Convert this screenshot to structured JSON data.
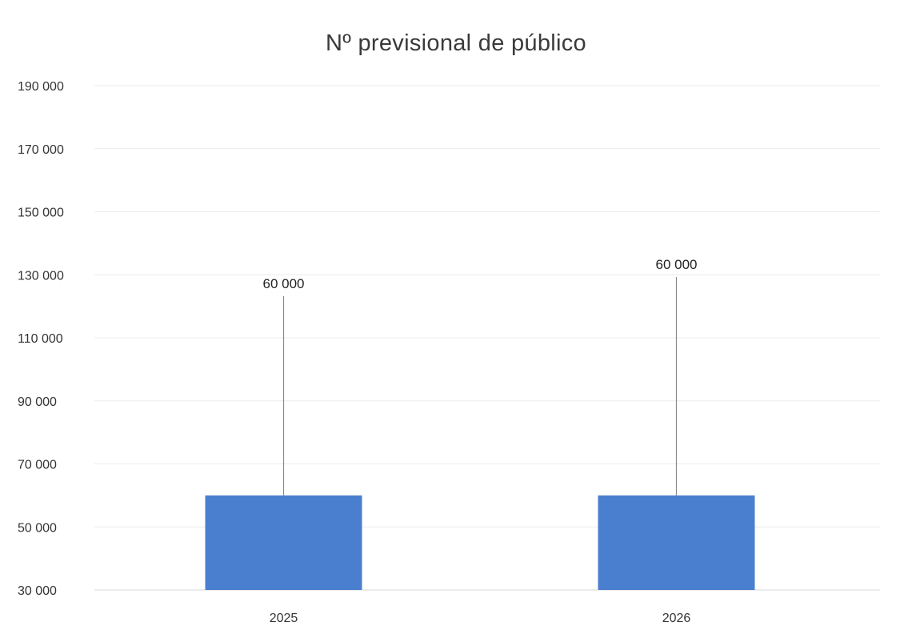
{
  "chart_data": {
    "type": "bar",
    "title": "Nº previsional de público",
    "xlabel": "",
    "ylabel": "",
    "categories": [
      "2025",
      "2026"
    ],
    "values": [
      60000,
      60000
    ],
    "data_labels": [
      "60 000",
      "60 000"
    ],
    "ylim": [
      30000,
      190000
    ],
    "yticks": [
      30000,
      50000,
      70000,
      90000,
      110000,
      130000,
      150000,
      170000,
      190000
    ],
    "ytick_labels": [
      "30 000",
      "50 000",
      "70 000",
      "90 000",
      "110 000",
      "130 000",
      "150 000",
      "170 000",
      "190 000"
    ],
    "grid": true,
    "legend": "none",
    "bar_color": "#4a7fcf"
  }
}
